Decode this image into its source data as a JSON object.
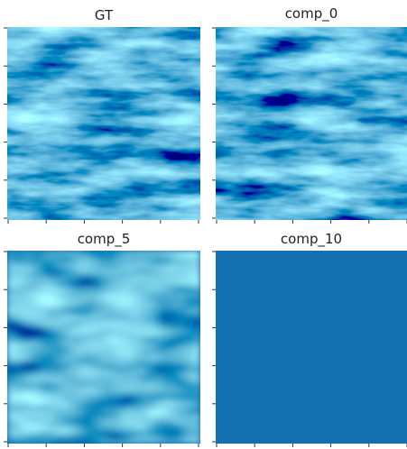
{
  "panels": [
    {
      "title": "GT"
    },
    {
      "title": "comp_0"
    },
    {
      "title": "comp_5"
    },
    {
      "title": "comp_10"
    }
  ]
}
